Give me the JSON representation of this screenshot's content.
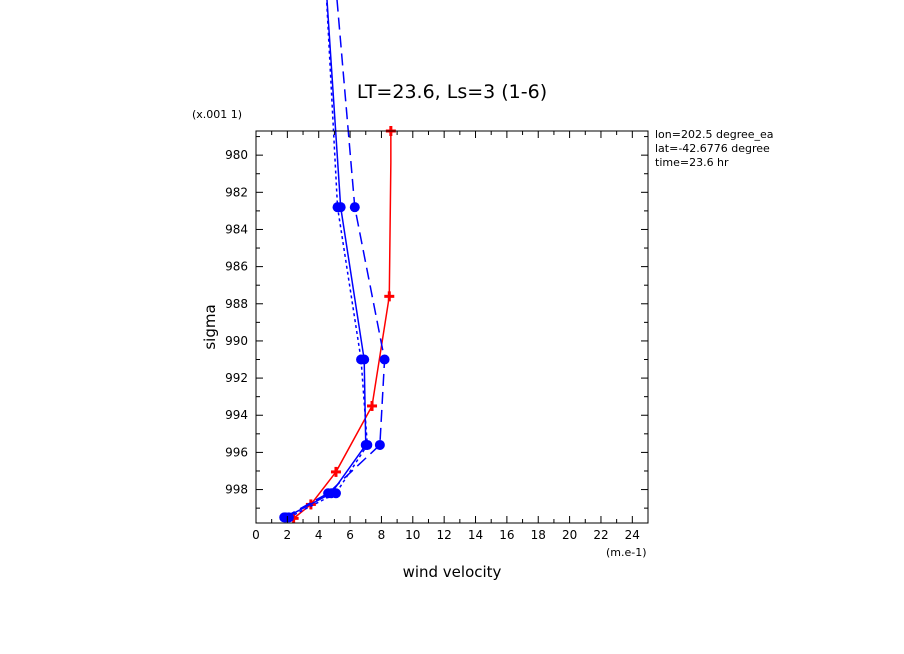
{
  "chart_data": {
    "type": "line",
    "title": "LT=23.6, Ls=3 (1-6)",
    "xlabel": "wind velocity",
    "ylabel": "sigma",
    "x_unit_label": "(m.e-1)",
    "y_unit_label": "(x.001 1)",
    "xlim": [
      0,
      25
    ],
    "ylim": [
      999.8,
      978.7
    ],
    "x_ticks": [
      0,
      2,
      4,
      6,
      8,
      10,
      12,
      14,
      16,
      18,
      20,
      22,
      24
    ],
    "y_ticks": [
      980,
      982,
      984,
      986,
      988,
      990,
      992,
      994,
      996,
      998
    ],
    "info_lines": [
      "lon=202.5 degree_ea",
      "lat=-42.6776 degree",
      "time=23.6 hr"
    ],
    "series": [
      {
        "color": "#ff0000",
        "style": "solid",
        "marker": "plus",
        "x": [
          2.4,
          3.5,
          5.1,
          7.4,
          8.5,
          8.6,
          8.6
        ],
        "y": [
          999.55,
          998.8,
          997.05,
          993.5,
          987.6,
          980.4,
          978.7
        ],
        "markers_at": [
          0,
          1,
          2,
          3,
          4,
          6
        ]
      },
      {
        "color": "#0000ff",
        "style": "solid",
        "marker": "dot",
        "x": [
          1.9,
          4.8,
          7.0,
          6.9,
          5.4,
          4.4
        ],
        "y": [
          999.5,
          998.2,
          995.6,
          991.0,
          982.8,
          970
        ],
        "markers_at": [
          0,
          1,
          2,
          3,
          4
        ]
      },
      {
        "color": "#0000ff",
        "style": "dotted",
        "marker": "dot",
        "x": [
          2.1,
          5.1,
          7.1,
          6.7,
          5.2,
          4.4
        ],
        "y": [
          999.5,
          998.2,
          995.6,
          991.0,
          982.8,
          970
        ],
        "markers_at": [
          0,
          1,
          2,
          3,
          4
        ]
      },
      {
        "color": "#0000ff",
        "style": "dashed",
        "marker": "dot",
        "x": [
          1.8,
          4.6,
          7.9,
          8.2,
          6.3,
          5.0
        ],
        "y": [
          999.5,
          998.2,
          995.6,
          991.0,
          982.8,
          970
        ],
        "markers_at": [
          0,
          1,
          2,
          3,
          4
        ]
      }
    ]
  }
}
